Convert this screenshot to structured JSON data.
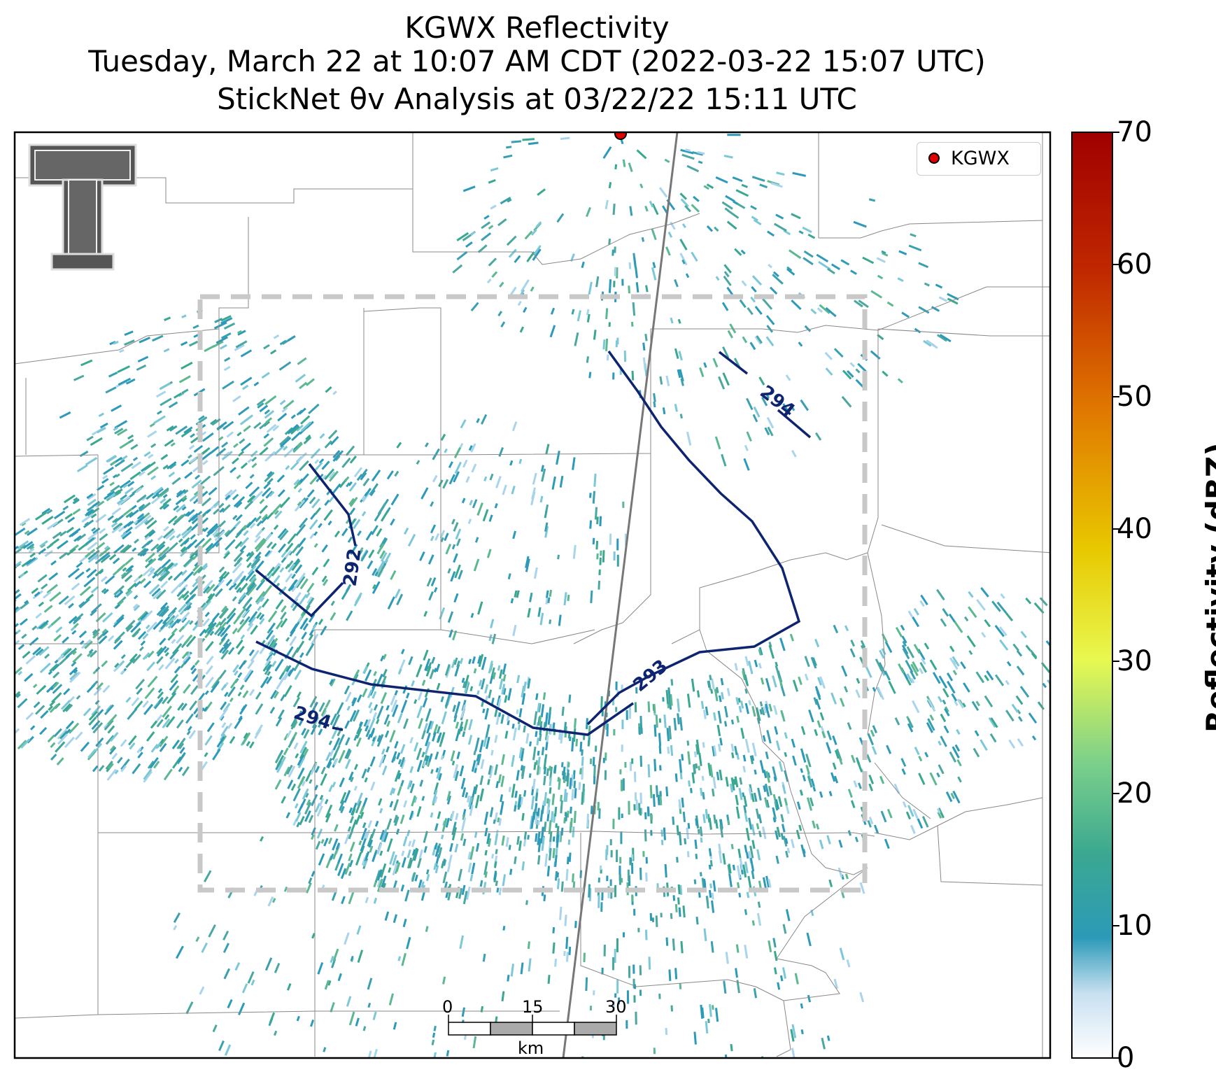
{
  "titles": {
    "line1": "KGWX Reflectivity",
    "line2": "Tuesday, March 22 at 10:07 AM CDT (2022-03-22 15:07 UTC)",
    "line3": "StickNet θv Analysis at 03/22/22 15:11 UTC"
  },
  "legend": {
    "radar_label": "KGWX",
    "radar_color": "#e00000"
  },
  "colorbar": {
    "title": "Reflectivity (dBZ)",
    "ticks": [
      "70",
      "60",
      "50",
      "40",
      "30",
      "20",
      "10",
      "0"
    ],
    "colors": [
      "#ffffff",
      "#c8e0f0",
      "#2c9ab8",
      "#3aa890",
      "#7cd08a",
      "#e8f850",
      "#e8c800",
      "#e07800",
      "#c02800",
      "#a00000"
    ]
  },
  "contours": {
    "color": "#0e2470",
    "labels": [
      "294",
      "292",
      "294",
      "293"
    ]
  },
  "scalebar": {
    "ticks": [
      "0",
      "15",
      "30"
    ],
    "unit": "km"
  },
  "logo": {
    "text": "TT",
    "icon": "texas-tech-logo"
  }
}
